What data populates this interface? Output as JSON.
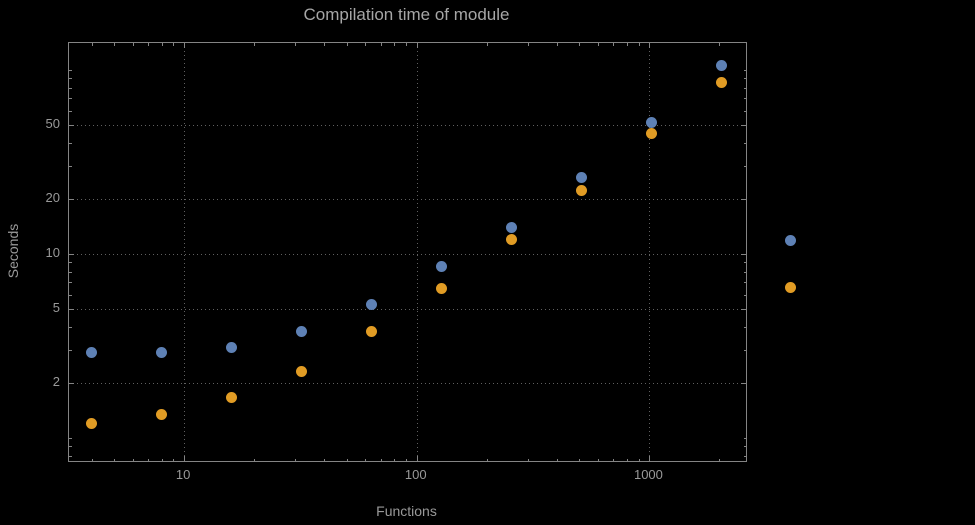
{
  "chart_data": {
    "type": "scatter",
    "title": "Compilation time of module",
    "xlabel": "Functions",
    "ylabel": "Seconds",
    "x_scale": "log",
    "y_scale": "log",
    "grid": "dotted",
    "x_range": [
      3.2,
      2600
    ],
    "y_range": [
      0.75,
      140
    ],
    "x_ticks": [
      10,
      100,
      1000
    ],
    "x_tick_labels": [
      "10",
      "100",
      "1000"
    ],
    "y_ticks": [
      2,
      5,
      10,
      20,
      50
    ],
    "y_tick_labels": [
      "2",
      "5",
      "10",
      "20",
      "50"
    ],
    "x": [
      4,
      8,
      16,
      32,
      64,
      128,
      256,
      512,
      1024,
      2048
    ],
    "series": [
      {
        "name": "series-1-blue",
        "color": "#5e81b5",
        "values": [
          2.9,
          2.9,
          3.1,
          3.8,
          5.3,
          8.5,
          14,
          26,
          52,
          105
        ]
      },
      {
        "name": "series-2-orange",
        "color": "#e19c24",
        "values": [
          1.2,
          1.35,
          1.65,
          2.3,
          3.8,
          6.5,
          12,
          22,
          45,
          85
        ]
      }
    ],
    "legend_position": "right"
  },
  "legend": {
    "markers": [
      {
        "name": "legend-marker-blue",
        "color": "#5e81b5"
      },
      {
        "name": "legend-marker-orange",
        "color": "#e19c24"
      }
    ]
  },
  "colors": {
    "background": "#000000",
    "frame": "#848484",
    "grid": "#606060",
    "text": "#999999",
    "title": "#a6a6a6",
    "series1": "#5e81b5",
    "series2": "#e19c24"
  }
}
